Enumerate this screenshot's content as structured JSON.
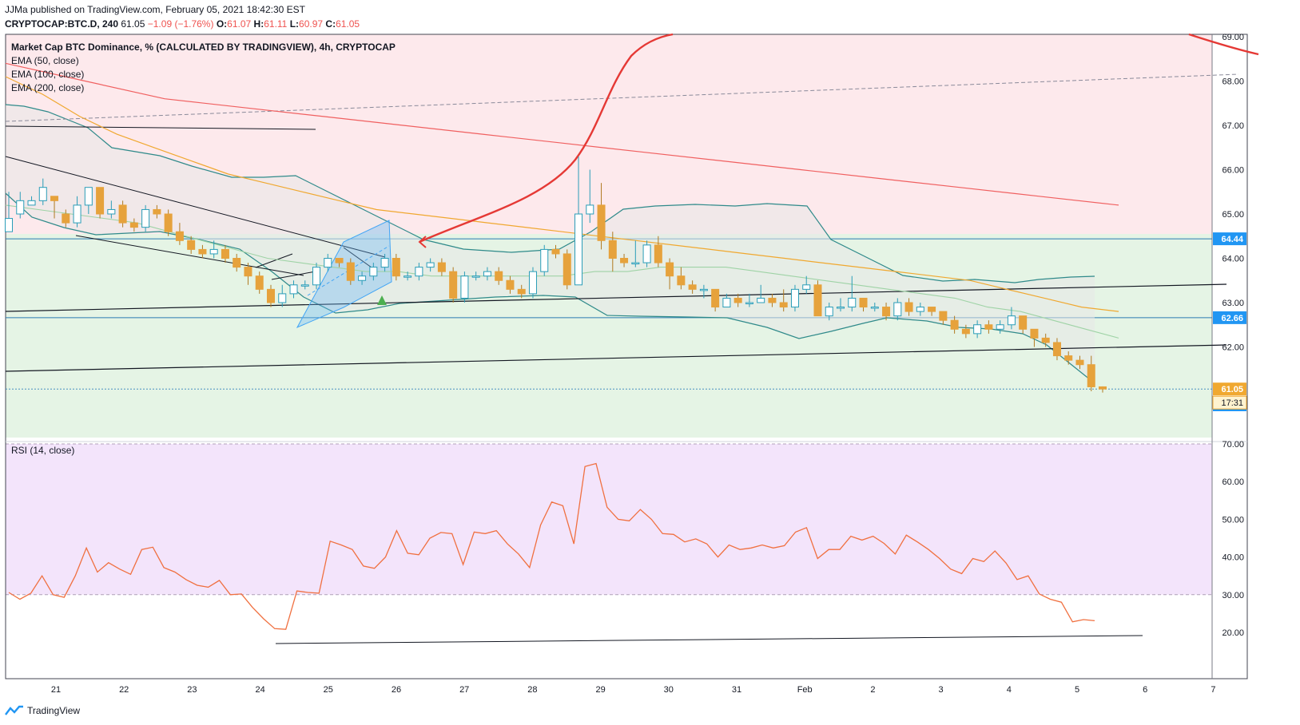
{
  "header": {
    "publisher_line": "JJMa published on TradingView.com, February 05, 2021 18:42:30 EST",
    "symbol": "CRYPTOCAP:BTC.D, 240",
    "last": "61.05",
    "change": "−1.09 (−1.76%)",
    "o_label": "O:",
    "o_val": "61.07",
    "h_label": "H:",
    "h_val": "61.11",
    "l_label": "L:",
    "l_val": "60.97",
    "c_label": "C:",
    "c_val": "61.05"
  },
  "legend": {
    "title": "Market Cap BTC Dominance, % (CALCULATED BY TRADINGVIEW), 4h, CRYPTOCAP",
    "ema50": "EMA (50, close)",
    "ema100": "EMA (100, close)",
    "ema200": "EMA (200, close)",
    "rsi": "RSI (14, close)"
  },
  "footer": {
    "brand": "TradingView"
  },
  "colors": {
    "up": "#e6a23c",
    "down": "#e6a23c",
    "up_fill": "#ffffff",
    "up_border": "#2a9db8",
    "red_zone": "#fde9ec",
    "green_zone": "#e5f4e5",
    "rsi_band": "#f3e4fb",
    "ema50": "#9fd3a6",
    "ema100": "#f0a830",
    "ema200": "#f06060",
    "bb": "#2f8a8a",
    "rsi_line": "#f07040",
    "price_tag": "#f0a830",
    "level_tag": "#2196f3"
  },
  "chart_data": [
    {
      "type": "line",
      "title": "Market Cap BTC Dominance, % (CALCULATED BY TRADINGVIEW), 4h, CRYPTOCAP",
      "x_ticks": [
        "21",
        "22",
        "23",
        "24",
        "25",
        "26",
        "27",
        "28",
        "29",
        "30",
        "31",
        "Feb",
        "2",
        "3",
        "4",
        "5",
        "6",
        "7"
      ],
      "y_ticks": [
        "61.00",
        "62.00",
        "63.00",
        "64.00",
        "65.00",
        "66.00",
        "67.00",
        "68.00",
        "69.00"
      ],
      "ylim": [
        60.2,
        69.05
      ],
      "price_levels": [
        {
          "label": "64.44",
          "value": 64.44
        },
        {
          "label": "62.66",
          "value": 62.66
        },
        {
          "label": "61.05",
          "value": 61.05
        },
        {
          "label": "61.00",
          "value": 61.0
        }
      ],
      "countdown": "17:31",
      "candles": [
        [
          64.6,
          64.9,
          64.6,
          65.5
        ],
        [
          65.0,
          65.3,
          64.9,
          65.5
        ],
        [
          65.2,
          65.3,
          65.2,
          65.4
        ],
        [
          65.3,
          65.6,
          65.2,
          65.8
        ],
        [
          65.4,
          65.3,
          64.9,
          65.4
        ],
        [
          65.0,
          64.8,
          64.7,
          65.1
        ],
        [
          64.8,
          65.2,
          64.7,
          65.4
        ],
        [
          65.2,
          65.6,
          65.0,
          65.6
        ],
        [
          65.6,
          65.0,
          64.9,
          65.6
        ],
        [
          65.0,
          65.1,
          64.9,
          65.3
        ],
        [
          65.2,
          64.8,
          64.7,
          65.3
        ],
        [
          64.8,
          64.7,
          64.6,
          64.9
        ],
        [
          64.7,
          65.1,
          64.6,
          65.2
        ],
        [
          65.1,
          65.0,
          64.9,
          65.2
        ],
        [
          65.0,
          64.6,
          64.5,
          65.1
        ],
        [
          64.6,
          64.4,
          64.3,
          64.8
        ],
        [
          64.4,
          64.2,
          64.1,
          64.5
        ],
        [
          64.2,
          64.1,
          64.0,
          64.3
        ],
        [
          64.1,
          64.2,
          64.0,
          64.4
        ],
        [
          64.2,
          64.0,
          63.9,
          64.3
        ],
        [
          64.0,
          63.8,
          63.7,
          64.1
        ],
        [
          63.8,
          63.6,
          63.4,
          63.9
        ],
        [
          63.6,
          63.3,
          63.2,
          63.7
        ],
        [
          63.3,
          63.0,
          62.9,
          63.4
        ],
        [
          63.0,
          63.2,
          62.9,
          63.4
        ],
        [
          63.2,
          63.4,
          63.1,
          63.5
        ],
        [
          63.4,
          63.4,
          63.3,
          63.5
        ],
        [
          63.4,
          63.8,
          63.3,
          63.9
        ],
        [
          63.8,
          64.0,
          63.7,
          64.1
        ],
        [
          64.0,
          63.9,
          63.8,
          64.0
        ],
        [
          63.9,
          63.5,
          63.4,
          64.0
        ],
        [
          63.5,
          63.6,
          63.4,
          63.7
        ],
        [
          63.6,
          63.8,
          63.5,
          63.9
        ],
        [
          63.8,
          64.0,
          63.7,
          64.1
        ],
        [
          64.0,
          63.6,
          63.5,
          64.1
        ],
        [
          63.6,
          63.6,
          63.5,
          63.7
        ],
        [
          63.6,
          63.8,
          63.5,
          63.9
        ],
        [
          63.8,
          63.9,
          63.7,
          64.0
        ],
        [
          63.9,
          63.7,
          63.6,
          64.0
        ],
        [
          63.7,
          63.1,
          63.0,
          63.8
        ],
        [
          63.1,
          63.6,
          63.0,
          63.7
        ],
        [
          63.6,
          63.6,
          63.5,
          63.7
        ],
        [
          63.6,
          63.7,
          63.5,
          63.8
        ],
        [
          63.7,
          63.5,
          63.4,
          63.8
        ],
        [
          63.5,
          63.3,
          63.2,
          63.6
        ],
        [
          63.3,
          63.2,
          63.1,
          63.4
        ],
        [
          63.2,
          63.7,
          63.1,
          63.8
        ],
        [
          63.7,
          64.2,
          63.6,
          64.3
        ],
        [
          64.2,
          64.1,
          64.0,
          64.3
        ],
        [
          64.1,
          63.4,
          63.3,
          64.2
        ],
        [
          63.4,
          65.0,
          63.4,
          66.3
        ],
        [
          65.0,
          65.2,
          64.8,
          66.0
        ],
        [
          65.2,
          64.4,
          64.2,
          65.7
        ],
        [
          64.4,
          64.0,
          63.7,
          64.6
        ],
        [
          64.0,
          63.9,
          63.8,
          64.1
        ],
        [
          63.9,
          63.9,
          63.8,
          64.4
        ],
        [
          63.9,
          64.3,
          63.8,
          64.4
        ],
        [
          64.3,
          63.9,
          63.8,
          64.5
        ],
        [
          63.9,
          63.6,
          63.3,
          64.0
        ],
        [
          63.6,
          63.4,
          63.3,
          63.8
        ],
        [
          63.4,
          63.3,
          63.2,
          63.5
        ],
        [
          63.3,
          63.3,
          63.1,
          63.4
        ],
        [
          63.3,
          62.9,
          62.8,
          63.3
        ],
        [
          62.9,
          63.1,
          62.9,
          63.2
        ],
        [
          63.1,
          63.0,
          62.9,
          63.2
        ],
        [
          63.0,
          63.0,
          62.9,
          63.2
        ],
        [
          63.0,
          63.1,
          63.0,
          63.4
        ],
        [
          63.1,
          63.0,
          62.9,
          63.2
        ],
        [
          63.0,
          62.9,
          62.8,
          63.3
        ],
        [
          62.9,
          63.3,
          62.8,
          63.4
        ],
        [
          63.3,
          63.4,
          63.2,
          63.6
        ],
        [
          63.4,
          62.7,
          62.7,
          63.5
        ],
        [
          62.7,
          62.9,
          62.6,
          63.0
        ],
        [
          62.9,
          62.9,
          62.8,
          63.1
        ],
        [
          62.9,
          63.1,
          62.8,
          63.6
        ],
        [
          63.1,
          62.9,
          62.8,
          63.1
        ],
        [
          62.9,
          62.9,
          62.8,
          63.0
        ],
        [
          62.9,
          62.7,
          62.6,
          63.0
        ],
        [
          62.7,
          63.0,
          62.6,
          63.1
        ],
        [
          63.0,
          62.8,
          62.7,
          63.1
        ],
        [
          62.8,
          62.9,
          62.7,
          63.0
        ],
        [
          62.9,
          62.8,
          62.7,
          62.9
        ],
        [
          62.8,
          62.6,
          62.5,
          62.8
        ],
        [
          62.6,
          62.4,
          62.3,
          62.7
        ],
        [
          62.4,
          62.3,
          62.2,
          62.5
        ],
        [
          62.3,
          62.5,
          62.2,
          62.6
        ],
        [
          62.5,
          62.4,
          62.3,
          62.6
        ],
        [
          62.4,
          62.5,
          62.3,
          62.6
        ],
        [
          62.5,
          62.7,
          62.4,
          62.9
        ],
        [
          62.7,
          62.4,
          62.3,
          62.7
        ],
        [
          62.4,
          62.2,
          62.0,
          62.4
        ],
        [
          62.2,
          62.1,
          62.0,
          62.3
        ],
        [
          62.1,
          61.8,
          61.7,
          62.2
        ],
        [
          61.8,
          61.7,
          61.6,
          61.9
        ],
        [
          61.7,
          61.6,
          61.5,
          61.8
        ],
        [
          61.6,
          61.1,
          61.0,
          61.8
        ],
        [
          61.1,
          61.05,
          60.97,
          61.11
        ]
      ],
      "ema50": [
        65.2,
        65.1,
        65.0,
        64.9,
        64.8,
        64.6,
        64.4,
        64.2,
        64.0,
        63.9,
        63.8,
        63.7,
        63.7,
        63.6,
        63.6,
        63.6,
        63.6,
        63.6,
        63.7,
        63.7,
        63.8,
        63.8,
        63.8,
        63.7,
        63.6,
        63.5,
        63.4,
        63.3,
        63.2,
        63.1,
        62.9,
        62.8,
        62.6,
        62.4,
        62.2
      ],
      "ema100": [
        68.1,
        67.7,
        67.2,
        66.8,
        66.5,
        66.2,
        65.9,
        65.7,
        65.5,
        65.3,
        65.1,
        65.0,
        64.9,
        64.8,
        64.7,
        64.6,
        64.5,
        64.4,
        64.3,
        64.2,
        64.1,
        64.0,
        63.9,
        63.8,
        63.7,
        63.6,
        63.5,
        63.3,
        63.1,
        62.9,
        62.8
      ],
      "ema200": [
        68.4,
        68.0,
        67.6,
        67.4,
        67.2,
        67.0,
        66.8,
        66.6,
        66.4,
        66.2,
        66.0,
        65.8,
        65.6,
        65.4,
        65.2
      ],
      "rsi": {
        "title": "RSI (14, close)",
        "y_ticks": [
          "20.00",
          "30.00",
          "40.00",
          "50.00",
          "60.00",
          "70.00"
        ],
        "ylim": [
          17,
          73
        ],
        "band": [
          30,
          70
        ],
        "values": [
          30.6,
          28.8,
          30.4,
          35.0,
          30.0,
          29.3,
          35.0,
          42.4,
          36.0,
          38.5,
          36.8,
          35.4,
          42.0,
          42.6,
          37.2,
          36.0,
          34.0,
          32.5,
          32.0,
          33.8,
          30.0,
          30.2,
          26.6,
          23.6,
          21.0,
          20.8,
          31.0,
          30.6,
          30.4,
          44.2,
          43.2,
          42.0,
          37.6,
          37.0,
          40.0,
          47.0,
          41.0,
          40.6,
          45.0,
          46.5,
          46.2,
          38.0,
          46.6,
          46.2,
          47.0,
          43.5,
          40.8,
          37.2,
          48.5,
          54.6,
          53.6,
          43.5,
          64.0,
          64.8,
          53.2,
          50.0,
          49.6,
          52.6,
          50.0,
          46.2,
          46.0,
          44.0,
          44.8,
          43.5,
          40.0,
          43.2,
          42.0,
          42.4,
          43.2,
          42.4,
          43.0,
          46.6,
          47.8,
          39.6,
          42.0,
          42.0,
          45.5,
          44.5,
          45.5,
          43.6,
          40.8,
          45.8,
          44.0,
          42.0,
          39.6,
          36.8,
          35.6,
          39.6,
          38.8,
          41.6,
          38.4,
          34.0,
          35.0,
          30.2,
          28.8,
          28.0,
          22.8,
          23.4,
          23.1
        ]
      }
    }
  ]
}
